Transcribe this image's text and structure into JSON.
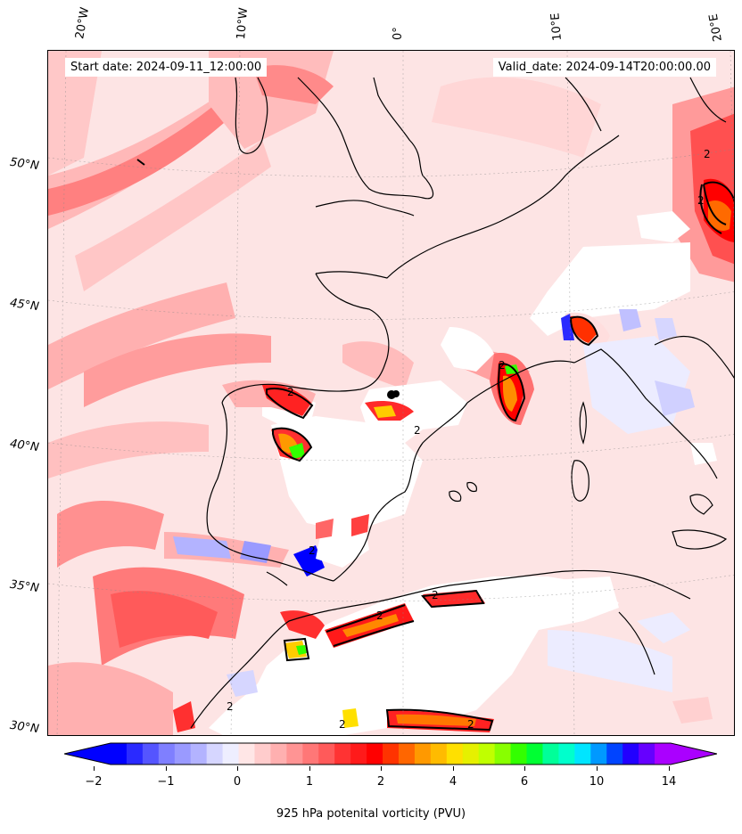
{
  "map": {
    "start_date": "Start date: 2024-09-11_12:00:00",
    "valid_date": "Valid_date: 2024-09-14T20:00:00.00",
    "contour_label": "2",
    "lon_labels": [
      "20°W",
      "10°W",
      "0°",
      "10°E",
      "20°E"
    ],
    "lat_labels": [
      "50°N",
      "45°N",
      "40°N",
      "35°N",
      "30°N"
    ]
  },
  "colorbar": {
    "label": "925 hPa potenital vorticity (PVU)",
    "tick_labels": [
      "−2",
      "−1",
      "0",
      "1",
      "2",
      "4",
      "6",
      "10",
      "14"
    ],
    "colors": [
      "#0000ff",
      "#2a2aff",
      "#5555ff",
      "#7f7fff",
      "#9a9aff",
      "#b3b3ff",
      "#d6d6ff",
      "#eeeeff",
      "#ffe6e6",
      "#ffcccc",
      "#ffb0b0",
      "#ff9494",
      "#ff7777",
      "#ff5a5a",
      "#ff3333",
      "#ff1a1a",
      "#ff0000",
      "#ff3300",
      "#ff6600",
      "#ff9900",
      "#ffbb00",
      "#ffe000",
      "#e6f000",
      "#c0ff00",
      "#88ff00",
      "#33ff00",
      "#00ff33",
      "#00ff99",
      "#00ffcc",
      "#00e5ff",
      "#0099ff",
      "#0044ff",
      "#2200ff",
      "#6600ff",
      "#aa00ff"
    ],
    "under_color": "#0000ff",
    "over_color": "#aa00ff"
  }
}
